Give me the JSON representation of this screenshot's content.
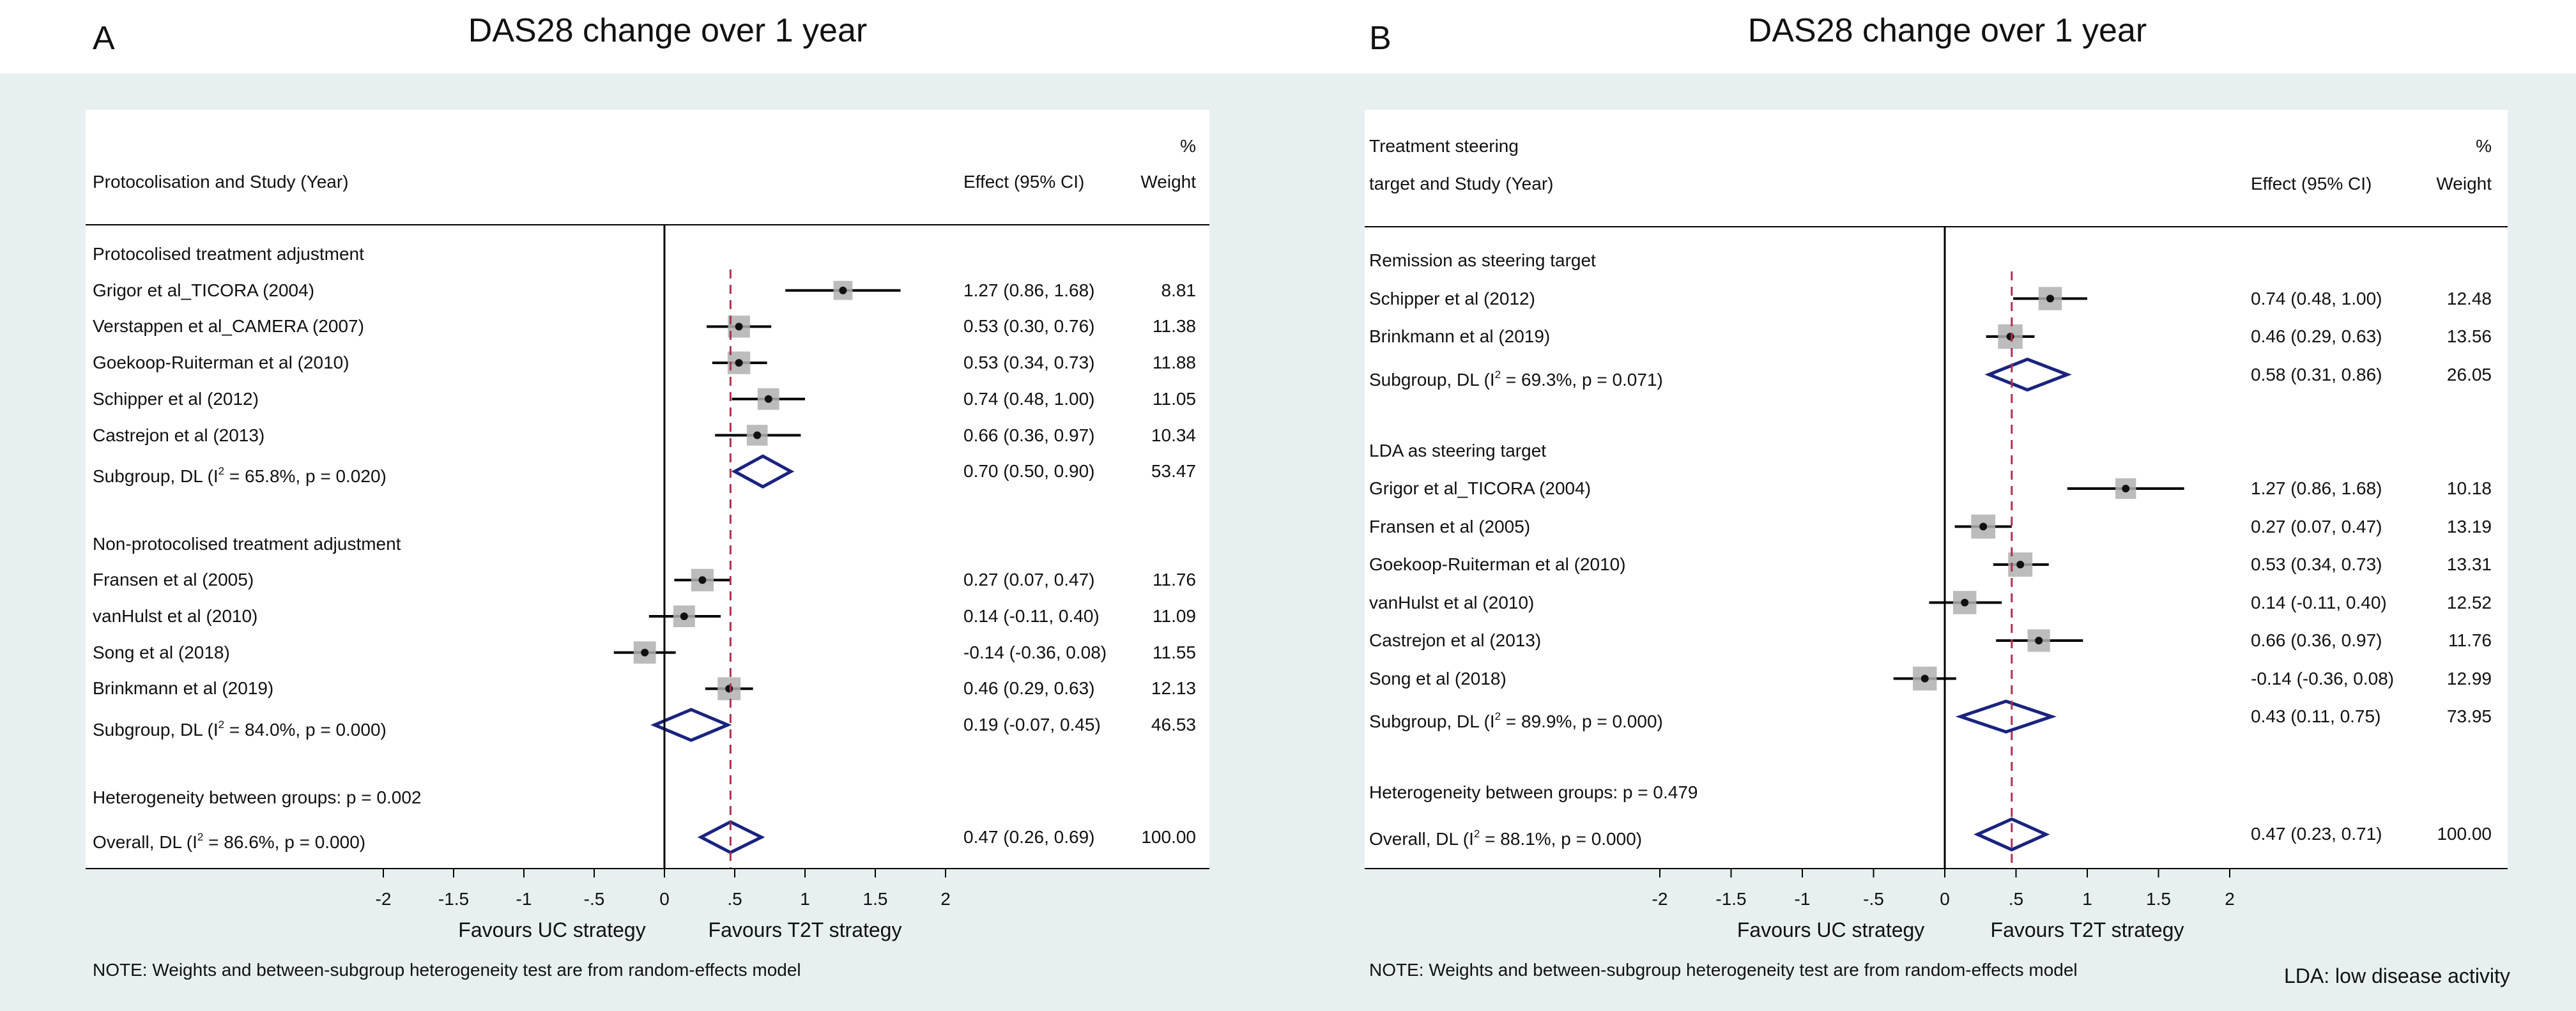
{
  "panels": [
    {
      "letter": "A",
      "title": "DAS28 change over 1 year",
      "header": {
        "group_label_lines": [
          "",
          "Protocolisation and Study (Year)"
        ],
        "effect_label": "Effect (95% CI)",
        "weight_label_lines": [
          "%",
          "Weight"
        ]
      },
      "heterogeneity_between": "Heterogeneity between groups: p = 0.002",
      "note": "NOTE: Weights and between-subgroup heterogeneity test are from random-effects model",
      "x_ticks": [
        "-2",
        "-1.5",
        "-1",
        "-.5",
        "0",
        ".5",
        "1",
        "1.5",
        "2"
      ],
      "favours_left": "Favours UC strategy",
      "favours_right": "Favours T2T strategy",
      "overall": {
        "label_pre": "Overall, DL (I",
        "sup": "2",
        "label_post": " = 86.6%, p = 0.000)",
        "effect": "0.47 (0.26, 0.69)",
        "weight": "100.00"
      }
    },
    {
      "letter": "B",
      "title": "DAS28 change over 1 year",
      "header": {
        "group_label_lines": [
          "Treatment steering",
          "target and Study (Year)"
        ],
        "effect_label": "Effect (95% CI)",
        "weight_label_lines": [
          "%",
          "Weight"
        ]
      },
      "heterogeneity_between": "Heterogeneity between groups: p = 0.479",
      "note": "NOTE: Weights and between-subgroup heterogeneity test are from random-effects model",
      "x_ticks": [
        "-2",
        "-1.5",
        "-1",
        "-.5",
        "0",
        ".5",
        "1",
        "1.5",
        "2"
      ],
      "favours_left": "Favours UC strategy",
      "favours_right": "Favours T2T strategy",
      "overall": {
        "label_pre": "Overall, DL (I",
        "sup": "2",
        "label_post": " = 88.1%, p = 0.000)",
        "effect": "0.47 (0.23, 0.71)",
        "weight": "100.00"
      }
    }
  ],
  "footnote": "LDA: low disease activity",
  "chart_data": [
    {
      "type": "forest",
      "panel": "A",
      "title": "DAS28 change over 1 year",
      "xlim": [
        -2,
        2
      ],
      "reference_line": 0,
      "overall_line": 0.47,
      "colors": {
        "diamond": "#1a237e",
        "overall_line": "#b03050",
        "ci": "#000000",
        "box": "#b0b0b0"
      },
      "groups": [
        {
          "name": "Protocolised treatment adjustment",
          "studies": [
            {
              "label": "Grigor et al_TICORA (2004)",
              "est": 1.27,
              "lo": 0.86,
              "hi": 1.68,
              "effect": "1.27 (0.86, 1.68)",
              "weight": "8.81"
            },
            {
              "label": "Verstappen et al_CAMERA (2007)",
              "est": 0.53,
              "lo": 0.3,
              "hi": 0.76,
              "effect": "0.53 (0.30, 0.76)",
              "weight": "11.38"
            },
            {
              "label": "Goekoop-Ruiterman et al (2010)",
              "est": 0.53,
              "lo": 0.34,
              "hi": 0.73,
              "effect": "0.53 (0.34, 0.73)",
              "weight": "11.88"
            },
            {
              "label": "Schipper et al (2012)",
              "est": 0.74,
              "lo": 0.48,
              "hi": 1.0,
              "effect": "0.74 (0.48, 1.00)",
              "weight": "11.05"
            },
            {
              "label": "Castrejon et al (2013)",
              "est": 0.66,
              "lo": 0.36,
              "hi": 0.97,
              "effect": "0.66 (0.36, 0.97)",
              "weight": "10.34"
            }
          ],
          "subgroup": {
            "label_pre": "Subgroup, DL (I",
            "sup": "2",
            "label_post": " = 65.8%, p = 0.020)",
            "est": 0.7,
            "lo": 0.5,
            "hi": 0.9,
            "effect": "0.70 (0.50, 0.90)",
            "weight": "53.47"
          }
        },
        {
          "name": "Non-protocolised treatment adjustment",
          "studies": [
            {
              "label": "Fransen et al (2005)",
              "est": 0.27,
              "lo": 0.07,
              "hi": 0.47,
              "effect": "0.27 (0.07, 0.47)",
              "weight": "11.76"
            },
            {
              "label": "vanHulst et al (2010)",
              "est": 0.14,
              "lo": -0.11,
              "hi": 0.4,
              "effect": "0.14 (-0.11, 0.40)",
              "weight": "11.09"
            },
            {
              "label": "Song et al (2018)",
              "est": -0.14,
              "lo": -0.36,
              "hi": 0.08,
              "effect": "-0.14 (-0.36, 0.08)",
              "weight": "11.55"
            },
            {
              "label": "Brinkmann et al (2019)",
              "est": 0.46,
              "lo": 0.29,
              "hi": 0.63,
              "effect": "0.46 (0.29, 0.63)",
              "weight": "12.13"
            }
          ],
          "subgroup": {
            "label_pre": "Subgroup, DL (I",
            "sup": "2",
            "label_post": " = 84.0%, p = 0.000)",
            "est": 0.19,
            "lo": -0.07,
            "hi": 0.45,
            "effect": "0.19 (-0.07, 0.45)",
            "weight": "46.53"
          }
        }
      ],
      "overall": {
        "est": 0.47,
        "lo": 0.26,
        "hi": 0.69
      }
    },
    {
      "type": "forest",
      "panel": "B",
      "title": "DAS28 change over 1 year",
      "xlim": [
        -2,
        2
      ],
      "reference_line": 0,
      "overall_line": 0.47,
      "colors": {
        "diamond": "#1a237e",
        "overall_line": "#b03050",
        "ci": "#000000",
        "box": "#b0b0b0"
      },
      "groups": [
        {
          "name": "Remission as steering target",
          "studies": [
            {
              "label": "Schipper et al (2012)",
              "est": 0.74,
              "lo": 0.48,
              "hi": 1.0,
              "effect": "0.74 (0.48, 1.00)",
              "weight": "12.48"
            },
            {
              "label": "Brinkmann et al (2019)",
              "est": 0.46,
              "lo": 0.29,
              "hi": 0.63,
              "effect": "0.46 (0.29, 0.63)",
              "weight": "13.56"
            }
          ],
          "subgroup": {
            "label_pre": "Subgroup, DL (I",
            "sup": "2",
            "label_post": " = 69.3%, p = 0.071)",
            "est": 0.58,
            "lo": 0.31,
            "hi": 0.86,
            "effect": "0.58 (0.31, 0.86)",
            "weight": "26.05"
          }
        },
        {
          "name": "LDA as steering target",
          "studies": [
            {
              "label": "Grigor et al_TICORA (2004)",
              "est": 1.27,
              "lo": 0.86,
              "hi": 1.68,
              "effect": "1.27 (0.86, 1.68)",
              "weight": "10.18"
            },
            {
              "label": "Fransen et al (2005)",
              "est": 0.27,
              "lo": 0.07,
              "hi": 0.47,
              "effect": "0.27 (0.07, 0.47)",
              "weight": "13.19"
            },
            {
              "label": "Goekoop-Ruiterman et al (2010)",
              "est": 0.53,
              "lo": 0.34,
              "hi": 0.73,
              "effect": "0.53 (0.34, 0.73)",
              "weight": "13.31"
            },
            {
              "label": "vanHulst et al (2010)",
              "est": 0.14,
              "lo": -0.11,
              "hi": 0.4,
              "effect": "0.14 (-0.11, 0.40)",
              "weight": "12.52"
            },
            {
              "label": "Castrejon et al (2013)",
              "est": 0.66,
              "lo": 0.36,
              "hi": 0.97,
              "effect": "0.66 (0.36, 0.97)",
              "weight": "11.76"
            },
            {
              "label": "Song et al (2018)",
              "est": -0.14,
              "lo": -0.36,
              "hi": 0.08,
              "effect": "-0.14 (-0.36, 0.08)",
              "weight": "12.99"
            }
          ],
          "subgroup": {
            "label_pre": "Subgroup, DL (I",
            "sup": "2",
            "label_post": " = 89.9%, p = 0.000)",
            "est": 0.43,
            "lo": 0.11,
            "hi": 0.75,
            "effect": "0.43 (0.11, 0.75)",
            "weight": "73.95"
          }
        }
      ],
      "overall": {
        "est": 0.47,
        "lo": 0.23,
        "hi": 0.71
      }
    }
  ]
}
